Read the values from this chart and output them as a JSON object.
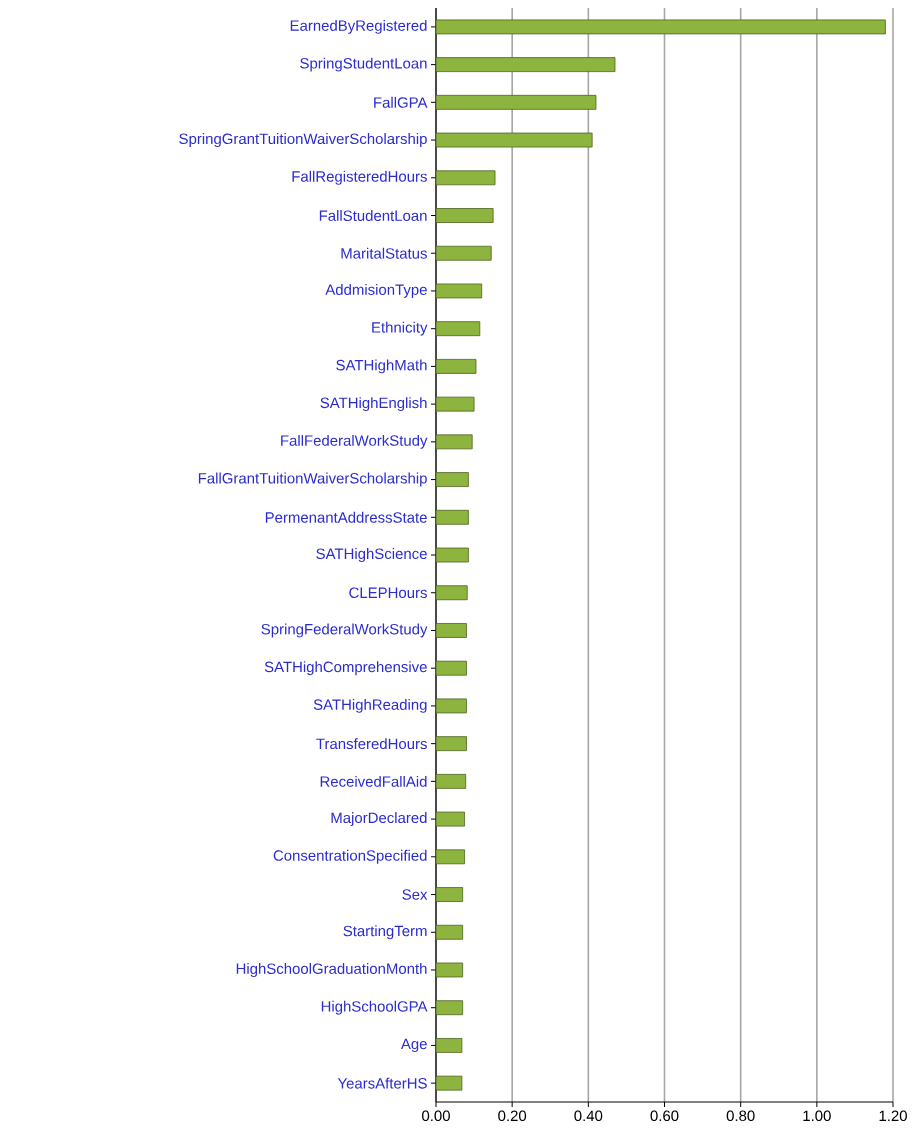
{
  "chart_data": {
    "type": "bar",
    "orientation": "horizontal",
    "categories": [
      "EarnedByRegistered",
      "SpringStudentLoan",
      "FallGPA",
      "SpringGrantTuitionWaiverScholarship",
      "FallRegisteredHours",
      "FallStudentLoan",
      "MaritalStatus",
      "AddmisionType",
      "Ethnicity",
      "SATHighMath",
      "SATHighEnglish",
      "FallFederalWorkStudy",
      "FallGrantTuitionWaiverScholarship",
      "PermenantAddressState",
      "SATHighScience",
      "CLEPHours",
      "SpringFederalWorkStudy",
      "SATHighComprehensive",
      "SATHighReading",
      "TransferedHours",
      "ReceivedFallAid",
      "MajorDeclared",
      "ConsentrationSpecified",
      "Sex",
      "StartingTerm",
      "HighSchoolGraduationMonth",
      "HighSchoolGPA",
      "Age",
      "YearsAfterHS"
    ],
    "values": [
      1.18,
      0.47,
      0.42,
      0.41,
      0.155,
      0.15,
      0.145,
      0.12,
      0.115,
      0.105,
      0.1,
      0.095,
      0.085,
      0.085,
      0.085,
      0.082,
      0.08,
      0.08,
      0.08,
      0.08,
      0.078,
      0.075,
      0.075,
      0.07,
      0.07,
      0.07,
      0.07,
      0.068,
      0.068
    ],
    "color": "#8db43e",
    "xlim": [
      0,
      1.2
    ],
    "xticks": [
      {
        "value": 0,
        "label": "0.00"
      },
      {
        "value": 0.2,
        "label": "0.20"
      },
      {
        "value": 0.4,
        "label": "0.40"
      },
      {
        "value": 0.6,
        "label": "0.60"
      },
      {
        "value": 0.8,
        "label": "0.80"
      },
      {
        "value": 1.0,
        "label": "1.00"
      },
      {
        "value": 1.2,
        "label": "1.20"
      }
    ],
    "grid": "x"
  }
}
